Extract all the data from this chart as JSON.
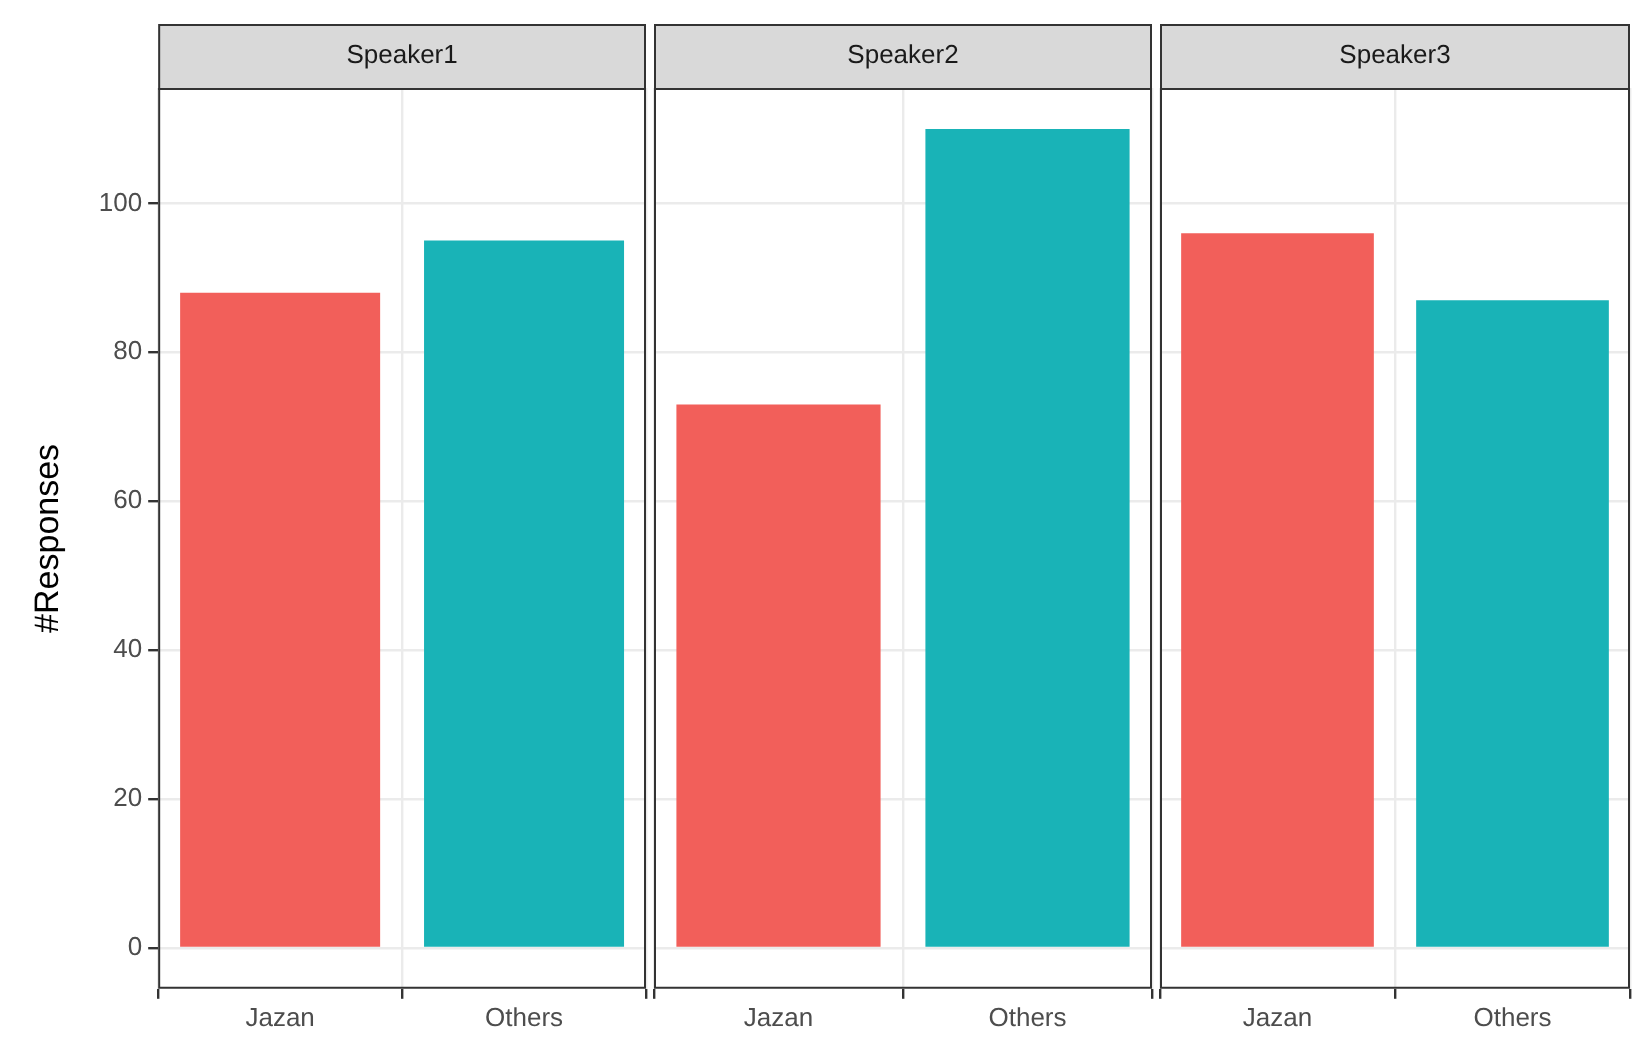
{
  "chart_data": [
    {
      "type": "bar",
      "title": "Speaker1",
      "ylabel": "#Responses",
      "categories": [
        "Jazan",
        "Others"
      ],
      "values": [
        88,
        95
      ],
      "colors": [
        "#f25f5a",
        "#19b3b7"
      ],
      "ylim": [
        -5.5,
        115.5
      ],
      "yticks": [
        0,
        20,
        40,
        60,
        80,
        100
      ],
      "grid": true,
      "legend": false
    },
    {
      "type": "bar",
      "title": "Speaker2",
      "categories": [
        "Jazan",
        "Others"
      ],
      "values": [
        73,
        110
      ],
      "colors": [
        "#f25f5a",
        "#19b3b7"
      ],
      "ylim": [
        -5.5,
        115.5
      ],
      "yticks": [
        0,
        20,
        40,
        60,
        80,
        100
      ],
      "grid": true,
      "legend": false,
      "tick_labels": "x"
    },
    {
      "type": "bar",
      "title": "Speaker3",
      "categories": [
        "Jazan",
        "Others"
      ],
      "values": [
        96,
        87
      ],
      "colors": [
        "#f25f5a",
        "#19b3b7"
      ],
      "ylim": [
        -5.5,
        115.5
      ],
      "yticks": [
        0,
        20,
        40,
        60,
        80,
        100
      ],
      "grid": true,
      "legend": false,
      "tick_labels": "x"
    }
  ]
}
